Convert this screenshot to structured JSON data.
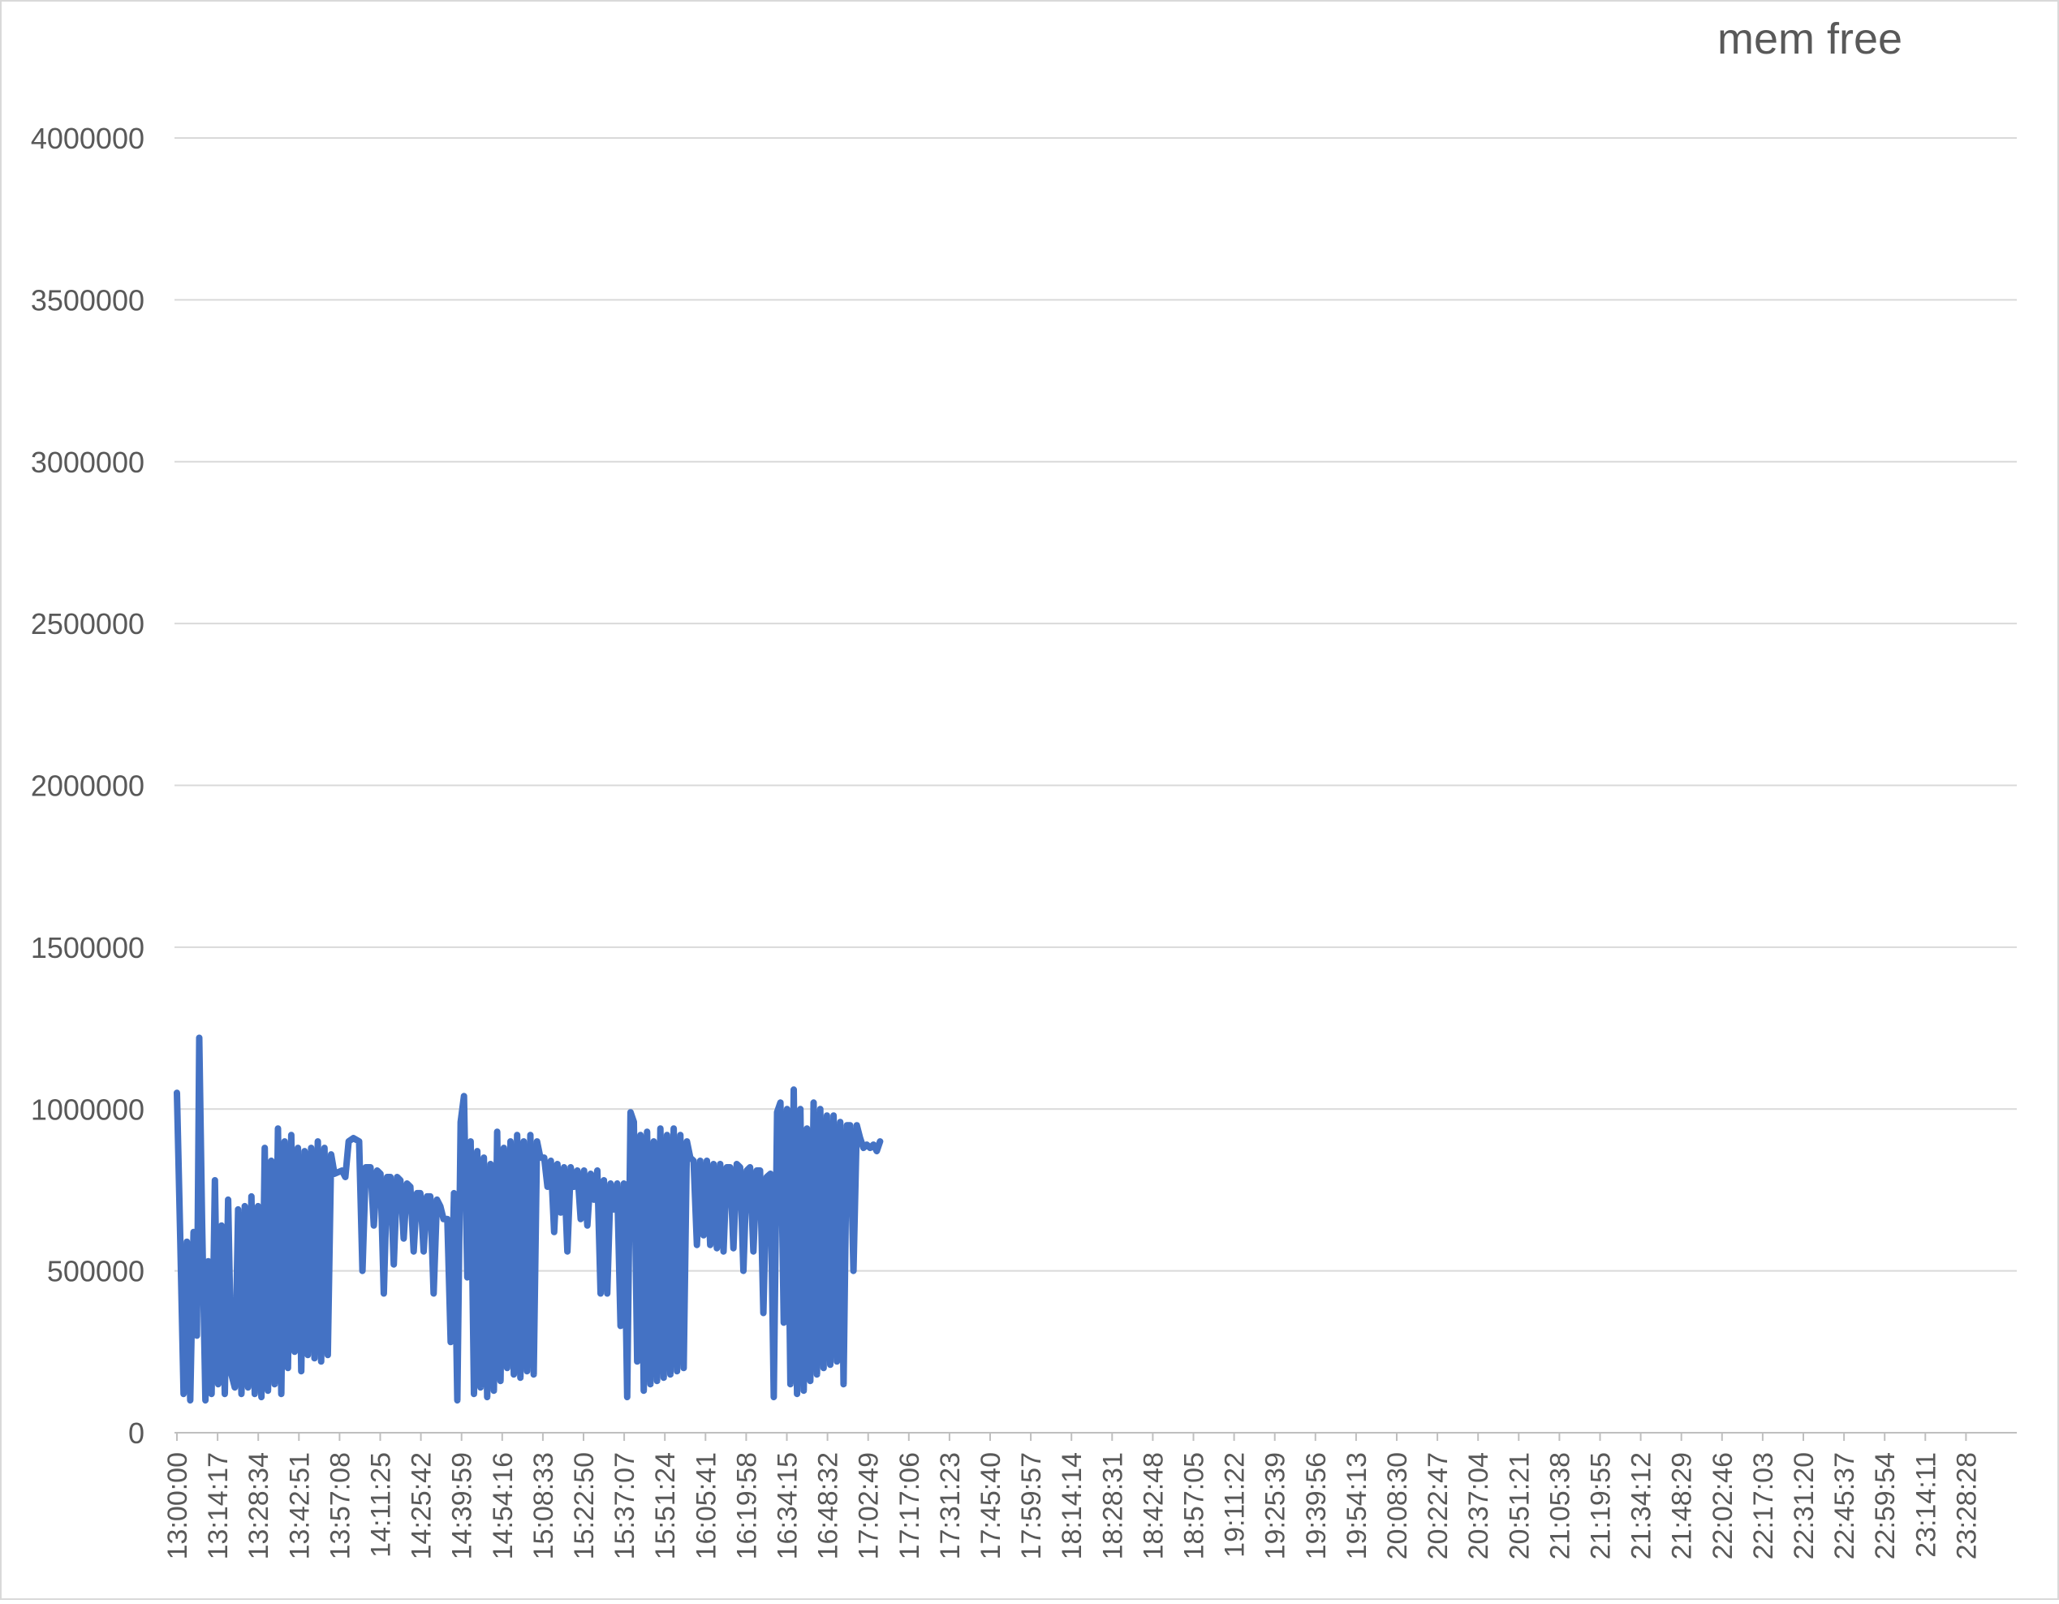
{
  "chart_data": {
    "type": "line",
    "title": "mem free",
    "xlabel": "",
    "ylabel": "",
    "ylim": [
      0,
      4000000
    ],
    "y_ticks": [
      "0",
      "500000",
      "1000000",
      "1500000",
      "2000000",
      "2500000",
      "3000000",
      "3500000",
      "4000000"
    ],
    "grid": true,
    "legend": "none",
    "x_tick_labels": [
      "13:00:00",
      "13:14:17",
      "13:28:34",
      "13:42:51",
      "13:57:08",
      "14:11:25",
      "14:25:42",
      "14:39:59",
      "14:54:16",
      "15:08:33",
      "15:22:50",
      "15:37:07",
      "15:51:24",
      "16:05:41",
      "16:19:58",
      "16:34:15",
      "16:48:32",
      "17:02:49",
      "17:17:06",
      "17:31:23",
      "17:45:40",
      "17:59:57",
      "18:14:14",
      "18:28:31",
      "18:42:48",
      "18:57:05",
      "19:11:22",
      "19:25:39",
      "19:39:56",
      "19:54:13",
      "20:08:30",
      "20:22:47",
      "20:37:04",
      "20:51:21",
      "21:05:38",
      "21:19:55",
      "21:34:12",
      "21:48:29",
      "22:02:46",
      "22:17:03",
      "22:31:20",
      "22:45:37",
      "22:59:54",
      "23:14:11",
      "23:28:28"
    ],
    "line_color": "#4472C4",
    "series": [
      {
        "name": "",
        "points": [
          [
            "13:00:00",
            1050000
          ],
          [
            "13:01:10",
            600000
          ],
          [
            "13:02:20",
            120000
          ],
          [
            "13:03:30",
            590000
          ],
          [
            "13:04:40",
            100000
          ],
          [
            "13:05:50",
            620000
          ],
          [
            "13:07:00",
            300000
          ],
          [
            "13:07:50",
            1220000
          ],
          [
            "13:08:50",
            650000
          ],
          [
            "13:10:00",
            100000
          ],
          [
            "13:11:00",
            530000
          ],
          [
            "13:12:10",
            120000
          ],
          [
            "13:13:20",
            780000
          ],
          [
            "13:14:30",
            150000
          ],
          [
            "13:15:40",
            640000
          ],
          [
            "13:16:50",
            120000
          ],
          [
            "13:18:00",
            720000
          ],
          [
            "13:19:10",
            180000
          ],
          [
            "13:20:20",
            140000
          ],
          [
            "13:21:30",
            690000
          ],
          [
            "13:22:40",
            120000
          ],
          [
            "13:23:50",
            700000
          ],
          [
            "13:25:00",
            140000
          ],
          [
            "13:26:10",
            730000
          ],
          [
            "13:27:20",
            120000
          ],
          [
            "13:28:30",
            700000
          ],
          [
            "13:29:40",
            110000
          ],
          [
            "13:30:50",
            880000
          ],
          [
            "13:32:00",
            130000
          ],
          [
            "13:33:10",
            840000
          ],
          [
            "13:34:20",
            150000
          ],
          [
            "13:35:30",
            940000
          ],
          [
            "13:36:40",
            120000
          ],
          [
            "13:37:50",
            900000
          ],
          [
            "13:39:00",
            200000
          ],
          [
            "13:40:10",
            920000
          ],
          [
            "13:41:20",
            250000
          ],
          [
            "13:42:30",
            880000
          ],
          [
            "13:43:40",
            190000
          ],
          [
            "13:44:50",
            870000
          ],
          [
            "13:46:00",
            240000
          ],
          [
            "13:47:10",
            880000
          ],
          [
            "13:48:20",
            230000
          ],
          [
            "13:49:30",
            900000
          ],
          [
            "13:50:40",
            220000
          ],
          [
            "13:51:50",
            880000
          ],
          [
            "13:53:00",
            240000
          ],
          [
            "13:54:10",
            860000
          ],
          [
            "13:55:20",
            800000
          ],
          [
            "13:58:00",
            810000
          ],
          [
            "13:59:10",
            790000
          ],
          [
            "14:00:20",
            900000
          ],
          [
            "14:02:00",
            910000
          ],
          [
            "14:04:00",
            900000
          ],
          [
            "14:05:10",
            500000
          ],
          [
            "14:06:20",
            820000
          ],
          [
            "14:08:00",
            820000
          ],
          [
            "14:09:10",
            640000
          ],
          [
            "14:10:20",
            810000
          ],
          [
            "14:11:30",
            800000
          ],
          [
            "14:12:40",
            430000
          ],
          [
            "14:13:50",
            790000
          ],
          [
            "14:15:00",
            790000
          ],
          [
            "14:16:10",
            520000
          ],
          [
            "14:17:20",
            790000
          ],
          [
            "14:18:30",
            780000
          ],
          [
            "14:19:40",
            600000
          ],
          [
            "14:20:50",
            770000
          ],
          [
            "14:22:00",
            760000
          ],
          [
            "14:23:10",
            560000
          ],
          [
            "14:24:20",
            740000
          ],
          [
            "14:25:30",
            740000
          ],
          [
            "14:26:40",
            560000
          ],
          [
            "14:27:50",
            730000
          ],
          [
            "14:29:00",
            730000
          ],
          [
            "14:30:10",
            430000
          ],
          [
            "14:31:20",
            720000
          ],
          [
            "14:32:30",
            700000
          ],
          [
            "14:33:40",
            660000
          ],
          [
            "14:35:00",
            660000
          ],
          [
            "14:36:10",
            280000
          ],
          [
            "14:37:20",
            740000
          ],
          [
            "14:38:30",
            100000
          ],
          [
            "14:39:40",
            960000
          ],
          [
            "14:40:50",
            1040000
          ],
          [
            "14:42:00",
            480000
          ],
          [
            "14:43:10",
            900000
          ],
          [
            "14:44:20",
            120000
          ],
          [
            "14:45:30",
            870000
          ],
          [
            "14:46:40",
            140000
          ],
          [
            "14:47:50",
            850000
          ],
          [
            "14:49:00",
            110000
          ],
          [
            "14:50:10",
            830000
          ],
          [
            "14:51:20",
            130000
          ],
          [
            "14:52:30",
            930000
          ],
          [
            "14:53:40",
            160000
          ],
          [
            "14:54:50",
            880000
          ],
          [
            "14:56:00",
            200000
          ],
          [
            "14:57:10",
            900000
          ],
          [
            "14:58:20",
            180000
          ],
          [
            "14:59:30",
            920000
          ],
          [
            "15:00:40",
            170000
          ],
          [
            "15:01:50",
            900000
          ],
          [
            "15:03:00",
            190000
          ],
          [
            "15:04:10",
            920000
          ],
          [
            "15:05:20",
            180000
          ],
          [
            "15:06:30",
            900000
          ],
          [
            "15:07:40",
            850000
          ],
          [
            "15:09:00",
            850000
          ],
          [
            "15:10:10",
            760000
          ],
          [
            "15:11:20",
            840000
          ],
          [
            "15:12:30",
            620000
          ],
          [
            "15:13:40",
            830000
          ],
          [
            "15:14:50",
            680000
          ],
          [
            "15:16:00",
            820000
          ],
          [
            "15:17:10",
            560000
          ],
          [
            "15:18:20",
            820000
          ],
          [
            "15:19:30",
            760000
          ],
          [
            "15:20:40",
            810000
          ],
          [
            "15:21:50",
            660000
          ],
          [
            "15:23:00",
            810000
          ],
          [
            "15:24:10",
            640000
          ],
          [
            "15:25:20",
            800000
          ],
          [
            "15:26:30",
            720000
          ],
          [
            "15:27:40",
            810000
          ],
          [
            "15:28:50",
            430000
          ],
          [
            "15:30:00",
            780000
          ],
          [
            "15:31:10",
            430000
          ],
          [
            "15:32:20",
            770000
          ],
          [
            "15:33:30",
            690000
          ],
          [
            "15:34:40",
            770000
          ],
          [
            "15:35:50",
            330000
          ],
          [
            "15:37:00",
            770000
          ],
          [
            "15:38:10",
            110000
          ],
          [
            "15:39:20",
            990000
          ],
          [
            "15:40:30",
            960000
          ],
          [
            "15:41:40",
            220000
          ],
          [
            "15:42:50",
            920000
          ],
          [
            "15:44:00",
            130000
          ],
          [
            "15:45:10",
            930000
          ],
          [
            "15:46:20",
            150000
          ],
          [
            "15:47:30",
            900000
          ],
          [
            "15:48:40",
            160000
          ],
          [
            "15:49:50",
            940000
          ],
          [
            "15:51:00",
            170000
          ],
          [
            "15:52:10",
            920000
          ],
          [
            "15:53:20",
            180000
          ],
          [
            "15:54:30",
            940000
          ],
          [
            "15:55:40",
            190000
          ],
          [
            "15:56:50",
            920000
          ],
          [
            "15:58:00",
            200000
          ],
          [
            "15:59:10",
            900000
          ],
          [
            "16:00:20",
            850000
          ],
          [
            "16:01:30",
            840000
          ],
          [
            "16:02:40",
            580000
          ],
          [
            "16:03:50",
            840000
          ],
          [
            "16:05:00",
            610000
          ],
          [
            "16:06:10",
            840000
          ],
          [
            "16:07:20",
            580000
          ],
          [
            "16:08:30",
            830000
          ],
          [
            "16:09:40",
            570000
          ],
          [
            "16:10:50",
            830000
          ],
          [
            "16:12:00",
            560000
          ],
          [
            "16:13:10",
            820000
          ],
          [
            "16:14:20",
            820000
          ],
          [
            "16:15:30",
            570000
          ],
          [
            "16:16:40",
            830000
          ],
          [
            "16:17:50",
            820000
          ],
          [
            "16:19:00",
            500000
          ],
          [
            "16:20:10",
            810000
          ],
          [
            "16:21:20",
            820000
          ],
          [
            "16:22:30",
            560000
          ],
          [
            "16:23:40",
            810000
          ],
          [
            "16:24:50",
            810000
          ],
          [
            "16:26:00",
            370000
          ],
          [
            "16:27:10",
            790000
          ],
          [
            "16:28:30",
            800000
          ],
          [
            "16:29:40",
            110000
          ],
          [
            "16:30:50",
            990000
          ],
          [
            "16:32:00",
            1020000
          ],
          [
            "16:33:10",
            340000
          ],
          [
            "16:34:20",
            1000000
          ],
          [
            "16:35:30",
            150000
          ],
          [
            "16:36:40",
            1060000
          ],
          [
            "16:37:50",
            120000
          ],
          [
            "16:39:00",
            1000000
          ],
          [
            "16:40:10",
            130000
          ],
          [
            "16:41:20",
            940000
          ],
          [
            "16:42:30",
            160000
          ],
          [
            "16:43:40",
            1020000
          ],
          [
            "16:44:50",
            180000
          ],
          [
            "16:46:00",
            1000000
          ],
          [
            "16:47:10",
            200000
          ],
          [
            "16:48:20",
            980000
          ],
          [
            "16:49:30",
            210000
          ],
          [
            "16:50:40",
            980000
          ],
          [
            "16:51:50",
            220000
          ],
          [
            "16:53:00",
            960000
          ],
          [
            "16:54:10",
            150000
          ],
          [
            "16:55:20",
            950000
          ],
          [
            "16:56:30",
            950000
          ],
          [
            "16:57:40",
            500000
          ],
          [
            "16:58:50",
            950000
          ],
          [
            "17:00:00",
            910000
          ],
          [
            "17:01:10",
            880000
          ],
          [
            "17:02:20",
            890000
          ],
          [
            "17:03:30",
            880000
          ],
          [
            "17:04:40",
            890000
          ],
          [
            "17:05:50",
            870000
          ],
          [
            "17:07:00",
            900000
          ]
        ]
      }
    ]
  }
}
